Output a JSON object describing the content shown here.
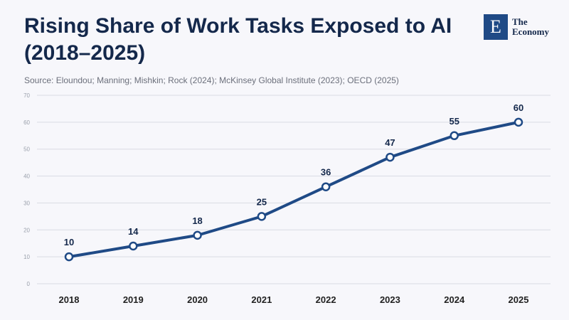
{
  "header": {
    "title": "Rising Share of Work Tasks Exposed to AI (2018–2025)",
    "source": "Source: Eloundou; Manning; Mishkin; Rock (2024); McKinsey Global Institute (2023); OECD (2025)"
  },
  "logo": {
    "mark": "E",
    "line1": "The",
    "line2": "Economy"
  },
  "colors": {
    "line": "#1f4a86",
    "grid": "#d9dbe3",
    "marker_fill": "#ffffff"
  },
  "chart_data": {
    "type": "line",
    "title": "Rising Share of Work Tasks Exposed to AI (2018–2025)",
    "x": [
      "2018",
      "2019",
      "2020",
      "2021",
      "2022",
      "2023",
      "2024",
      "2025"
    ],
    "series": [
      {
        "values": [
          10,
          14,
          18,
          25,
          36,
          47,
          55,
          60
        ]
      }
    ],
    "ylim": [
      0,
      70
    ],
    "yticks": [
      0,
      10,
      20,
      30,
      40,
      50,
      60,
      70
    ],
    "grid": true,
    "data_labels": true
  }
}
